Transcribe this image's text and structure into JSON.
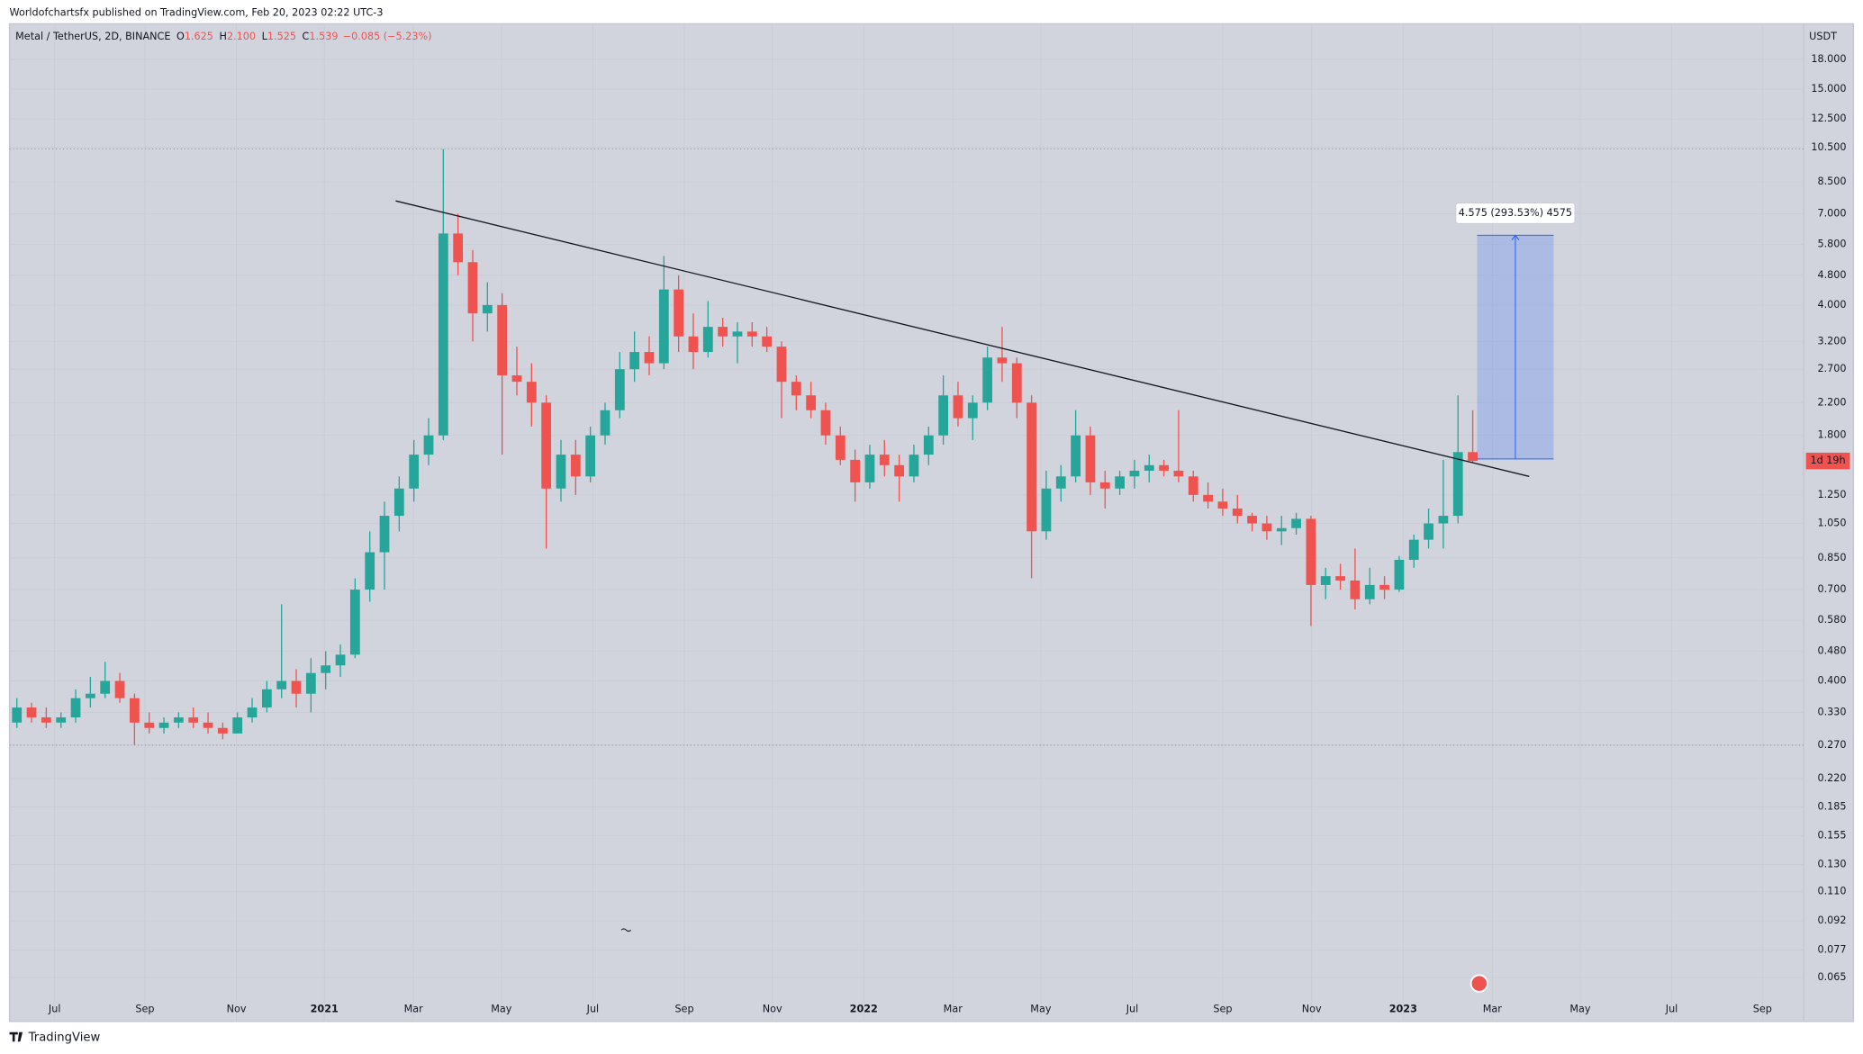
{
  "header": "Worldofchartsfx published on TradingView.com, Feb 20, 2023 02:22 UTC-3",
  "footer": "TradingView",
  "chart_data": {
    "type": "candlestick",
    "symbol": "Metal / TetherUS, 2D, BINANCE",
    "ohlc_legend": [
      {
        "key": "O",
        "value": "1.625"
      },
      {
        "key": "H",
        "value": "2.100"
      },
      {
        "key": "L",
        "value": "1.525"
      },
      {
        "key": "C",
        "value": "1.539"
      }
    ],
    "change": "−0.085 (−5.23%)",
    "currency": "USDT",
    "log_scale": true,
    "grid": true,
    "up_color": "#26a69a",
    "down_color": "#ef5350",
    "ohlc": [
      [
        0.31,
        0.36,
        0.3,
        0.34
      ],
      [
        0.34,
        0.35,
        0.31,
        0.32
      ],
      [
        0.32,
        0.34,
        0.3,
        0.31
      ],
      [
        0.31,
        0.33,
        0.3,
        0.32
      ],
      [
        0.32,
        0.38,
        0.31,
        0.36
      ],
      [
        0.36,
        0.41,
        0.34,
        0.37
      ],
      [
        0.37,
        0.45,
        0.36,
        0.4
      ],
      [
        0.4,
        0.42,
        0.35,
        0.36
      ],
      [
        0.36,
        0.37,
        0.27,
        0.31
      ],
      [
        0.31,
        0.33,
        0.29,
        0.3
      ],
      [
        0.3,
        0.32,
        0.29,
        0.31
      ],
      [
        0.31,
        0.33,
        0.3,
        0.32
      ],
      [
        0.32,
        0.34,
        0.3,
        0.31
      ],
      [
        0.31,
        0.33,
        0.29,
        0.3
      ],
      [
        0.3,
        0.31,
        0.28,
        0.29
      ],
      [
        0.29,
        0.33,
        0.29,
        0.32
      ],
      [
        0.32,
        0.36,
        0.31,
        0.34
      ],
      [
        0.34,
        0.4,
        0.33,
        0.38
      ],
      [
        0.38,
        0.64,
        0.36,
        0.4
      ],
      [
        0.4,
        0.43,
        0.34,
        0.37
      ],
      [
        0.37,
        0.46,
        0.33,
        0.42
      ],
      [
        0.42,
        0.48,
        0.38,
        0.44
      ],
      [
        0.44,
        0.5,
        0.41,
        0.47
      ],
      [
        0.47,
        0.75,
        0.46,
        0.7
      ],
      [
        0.7,
        1.0,
        0.65,
        0.88
      ],
      [
        0.88,
        1.2,
        0.7,
        1.1
      ],
      [
        1.1,
        1.4,
        1.0,
        1.3
      ],
      [
        1.3,
        1.75,
        1.2,
        1.6
      ],
      [
        1.6,
        2.0,
        1.5,
        1.8
      ],
      [
        1.8,
        10.4,
        1.75,
        6.2
      ],
      [
        6.2,
        7.0,
        4.8,
        5.2
      ],
      [
        5.2,
        5.6,
        3.2,
        3.8
      ],
      [
        3.8,
        4.6,
        3.4,
        4.0
      ],
      [
        4.0,
        4.3,
        1.6,
        2.6
      ],
      [
        2.6,
        3.1,
        2.3,
        2.5
      ],
      [
        2.5,
        2.8,
        1.9,
        2.2
      ],
      [
        2.2,
        2.3,
        0.9,
        1.3
      ],
      [
        1.3,
        1.75,
        1.2,
        1.6
      ],
      [
        1.6,
        1.75,
        1.25,
        1.4
      ],
      [
        1.4,
        1.9,
        1.35,
        1.8
      ],
      [
        1.8,
        2.2,
        1.7,
        2.1
      ],
      [
        2.1,
        3.0,
        2.0,
        2.7
      ],
      [
        2.7,
        3.4,
        2.5,
        3.0
      ],
      [
        3.0,
        3.3,
        2.6,
        2.8
      ],
      [
        2.8,
        5.4,
        2.7,
        4.4
      ],
      [
        4.4,
        4.8,
        3.0,
        3.3
      ],
      [
        3.3,
        3.8,
        2.7,
        3.0
      ],
      [
        3.0,
        4.1,
        2.9,
        3.5
      ],
      [
        3.5,
        3.7,
        3.1,
        3.3
      ],
      [
        3.3,
        3.6,
        2.8,
        3.4
      ],
      [
        3.4,
        3.6,
        3.1,
        3.3
      ],
      [
        3.3,
        3.5,
        3.0,
        3.1
      ],
      [
        3.1,
        3.2,
        2.0,
        2.5
      ],
      [
        2.5,
        2.6,
        2.1,
        2.3
      ],
      [
        2.3,
        2.5,
        2.0,
        2.1
      ],
      [
        2.1,
        2.2,
        1.7,
        1.8
      ],
      [
        1.8,
        1.9,
        1.5,
        1.55
      ],
      [
        1.55,
        1.65,
        1.2,
        1.35
      ],
      [
        1.35,
        1.7,
        1.3,
        1.6
      ],
      [
        1.6,
        1.75,
        1.4,
        1.5
      ],
      [
        1.5,
        1.6,
        1.2,
        1.4
      ],
      [
        1.4,
        1.7,
        1.35,
        1.6
      ],
      [
        1.6,
        1.9,
        1.5,
        1.8
      ],
      [
        1.8,
        2.6,
        1.7,
        2.3
      ],
      [
        2.3,
        2.5,
        1.9,
        2.0
      ],
      [
        2.0,
        2.3,
        1.75,
        2.2
      ],
      [
        2.2,
        3.1,
        2.1,
        2.9
      ],
      [
        2.9,
        3.5,
        2.5,
        2.8
      ],
      [
        2.8,
        2.9,
        2.0,
        2.2
      ],
      [
        2.2,
        2.3,
        0.75,
        1.0
      ],
      [
        1.0,
        1.45,
        0.95,
        1.3
      ],
      [
        1.3,
        1.5,
        1.2,
        1.4
      ],
      [
        1.4,
        2.1,
        1.35,
        1.8
      ],
      [
        1.8,
        1.9,
        1.25,
        1.35
      ],
      [
        1.35,
        1.45,
        1.15,
        1.3
      ],
      [
        1.3,
        1.45,
        1.25,
        1.4
      ],
      [
        1.4,
        1.55,
        1.3,
        1.45
      ],
      [
        1.45,
        1.6,
        1.35,
        1.5
      ],
      [
        1.5,
        1.55,
        1.4,
        1.45
      ],
      [
        1.45,
        2.1,
        1.35,
        1.4
      ],
      [
        1.4,
        1.45,
        1.2,
        1.25
      ],
      [
        1.25,
        1.35,
        1.15,
        1.2
      ],
      [
        1.2,
        1.3,
        1.1,
        1.15
      ],
      [
        1.15,
        1.25,
        1.05,
        1.1
      ],
      [
        1.1,
        1.12,
        1.0,
        1.05
      ],
      [
        1.05,
        1.1,
        0.95,
        1.0
      ],
      [
        1.0,
        1.1,
        0.92,
        1.02
      ],
      [
        1.02,
        1.12,
        0.98,
        1.08
      ],
      [
        1.08,
        1.1,
        0.56,
        0.72
      ],
      [
        0.72,
        0.8,
        0.66,
        0.76
      ],
      [
        0.76,
        0.82,
        0.7,
        0.74
      ],
      [
        0.74,
        0.9,
        0.62,
        0.66
      ],
      [
        0.66,
        0.8,
        0.64,
        0.72
      ],
      [
        0.72,
        0.76,
        0.66,
        0.7
      ],
      [
        0.7,
        0.86,
        0.69,
        0.84
      ],
      [
        0.84,
        0.98,
        0.8,
        0.95
      ],
      [
        0.95,
        1.15,
        0.9,
        1.05
      ],
      [
        1.05,
        1.55,
        0.9,
        1.1
      ],
      [
        1.1,
        2.3,
        1.05,
        1.625
      ],
      [
        1.625,
        2.1,
        1.525,
        1.539
      ]
    ],
    "xlim": [
      -0.5,
      121.5
    ],
    "xticks": [
      {
        "value": 2.57,
        "label": "Jul"
      },
      {
        "value": 8.71,
        "label": "Sep"
      },
      {
        "value": 14.93,
        "label": "Nov"
      },
      {
        "value": 20.91,
        "label": "2021"
      },
      {
        "value": 26.97,
        "label": "Mar"
      },
      {
        "value": 32.95,
        "label": "May"
      },
      {
        "value": 39.17,
        "label": "Jul"
      },
      {
        "value": 45.39,
        "label": "Sep"
      },
      {
        "value": 51.37,
        "label": "Nov"
      },
      {
        "value": 57.59,
        "label": "2022"
      },
      {
        "value": 63.65,
        "label": "Mar"
      },
      {
        "value": 69.63,
        "label": "May"
      },
      {
        "value": 75.85,
        "label": "Jul"
      },
      {
        "value": 82.0,
        "label": "Sep"
      },
      {
        "value": 88.05,
        "label": "Nov"
      },
      {
        "value": 94.27,
        "label": "2023"
      },
      {
        "value": 100.33,
        "label": "Mar"
      },
      {
        "value": 106.31,
        "label": "May"
      },
      {
        "value": 112.53,
        "label": "Jul"
      },
      {
        "value": 118.7,
        "label": "Sep"
      }
    ],
    "ylim": [
      0.0497,
      22.4
    ],
    "yticks": [
      {
        "value": 18,
        "label": "18.000"
      },
      {
        "value": 15,
        "label": "15.000"
      },
      {
        "value": 12.5,
        "label": "12.500"
      },
      {
        "value": 10.5,
        "label": "10.500"
      },
      {
        "value": 8.5,
        "label": "8.500"
      },
      {
        "value": 7,
        "label": "7.000"
      },
      {
        "value": 5.8,
        "label": "5.800"
      },
      {
        "value": 4.8,
        "label": "4.800"
      },
      {
        "value": 4,
        "label": "4.000"
      },
      {
        "value": 3.2,
        "label": "3.200"
      },
      {
        "value": 2.7,
        "label": "2.700"
      },
      {
        "value": 2.2,
        "label": "2.200"
      },
      {
        "value": 1.8,
        "label": "1.800"
      },
      {
        "value": 1.25,
        "label": "1.250"
      },
      {
        "value": 1.05,
        "label": "1.050"
      },
      {
        "value": 0.85,
        "label": "0.850"
      },
      {
        "value": 0.7,
        "label": "0.700"
      },
      {
        "value": 0.58,
        "label": "0.580"
      },
      {
        "value": 0.48,
        "label": "0.480"
      },
      {
        "value": 0.4,
        "label": "0.400"
      },
      {
        "value": 0.33,
        "label": "0.330"
      },
      {
        "value": 0.27,
        "label": "0.270"
      },
      {
        "value": 0.22,
        "label": "0.220"
      },
      {
        "value": 0.185,
        "label": "0.185"
      },
      {
        "value": 0.155,
        "label": "0.155"
      },
      {
        "value": 0.13,
        "label": "0.130"
      },
      {
        "value": 0.11,
        "label": "0.110"
      },
      {
        "value": 0.092,
        "label": "0.092"
      },
      {
        "value": 0.077,
        "label": "0.077"
      },
      {
        "value": 0.065,
        "label": "0.065"
      }
    ],
    "price_lines": [
      10.4,
      0.27
    ],
    "trendline": {
      "x": [
        25.76,
        102.84
      ],
      "y": [
        7.57,
        1.4
      ]
    },
    "measure": {
      "x": [
        99.3,
        104.5
      ],
      "y": [
        1.5586,
        6.1336
      ],
      "label": "4.575 (293.53%) 4575"
    },
    "countdown": "1d 19h"
  }
}
